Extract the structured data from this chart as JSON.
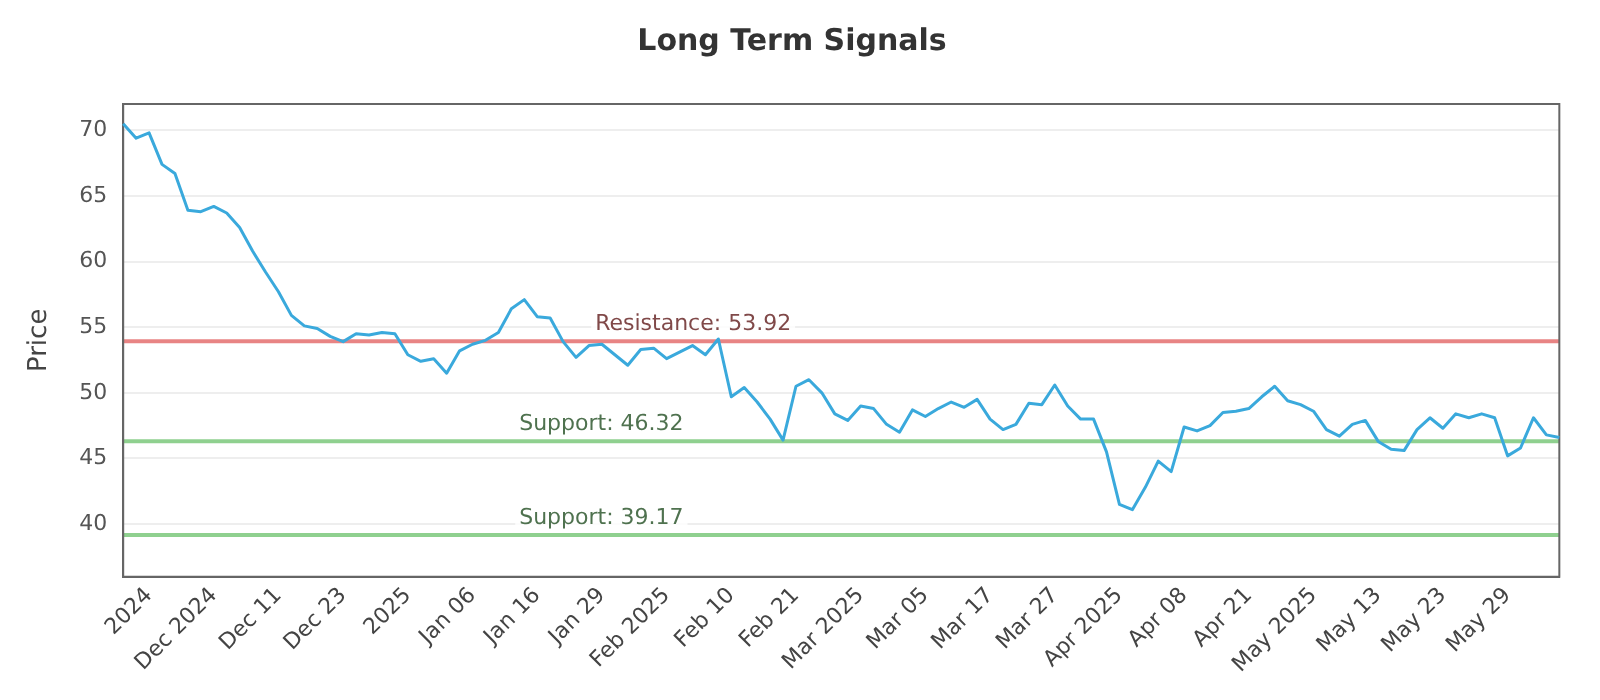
{
  "chart_data": {
    "type": "line",
    "title": "Long Term Signals",
    "ylabel": "Price",
    "categories": [
      null,
      null,
      "2024",
      null,
      null,
      null,
      null,
      "Dec 2024",
      null,
      null,
      null,
      null,
      "Dec 11",
      null,
      null,
      null,
      null,
      "Dec 23",
      null,
      null,
      null,
      null,
      "2025",
      null,
      null,
      null,
      null,
      "Jan 06",
      null,
      null,
      null,
      null,
      "Jan 16",
      null,
      null,
      null,
      null,
      "Jan 29",
      null,
      null,
      null,
      null,
      "Feb 2025",
      null,
      null,
      null,
      null,
      "Feb 10",
      null,
      null,
      null,
      null,
      "Feb 21",
      null,
      null,
      null,
      null,
      "Mar 2025",
      null,
      null,
      null,
      null,
      "Mar 05",
      null,
      null,
      null,
      null,
      "Mar 17",
      null,
      null,
      null,
      null,
      "Mar 27",
      null,
      null,
      null,
      null,
      "Apr 2025",
      null,
      null,
      null,
      null,
      "Apr 08",
      null,
      null,
      null,
      null,
      "Apr 21",
      null,
      null,
      null,
      null,
      "May 2025",
      null,
      null,
      null,
      null,
      "May 13",
      null,
      null,
      null,
      null,
      "May 23",
      null,
      null,
      null,
      null,
      "May 29",
      null,
      null,
      null,
      null
    ],
    "series": [
      {
        "color": "#3aa9dc",
        "values": [
          70.5,
          69.4,
          69.8,
          67.4,
          66.7,
          63.9,
          63.8,
          64.2,
          63.7,
          62.6,
          60.8,
          59.2,
          57.7,
          55.9,
          55.1,
          54.9,
          54.3,
          53.9,
          54.5,
          54.4,
          54.6,
          54.5,
          52.9,
          52.4,
          52.6,
          51.5,
          53.2,
          53.7,
          54.0,
          54.6,
          56.4,
          57.1,
          55.8,
          55.7,
          53.9,
          52.7,
          53.6,
          53.7,
          52.9,
          52.1,
          53.3,
          53.4,
          52.6,
          53.1,
          53.6,
          52.9,
          54.1,
          49.7,
          50.4,
          49.3,
          48.0,
          46.4,
          50.5,
          51.0,
          50.0,
          48.4,
          47.9,
          49.0,
          48.8,
          47.6,
          47.0,
          48.7,
          48.2,
          48.8,
          49.3,
          48.9,
          49.5,
          48.0,
          47.2,
          47.6,
          49.2,
          49.1,
          50.6,
          49.0,
          48.0,
          48.0,
          45.5,
          41.5,
          41.1,
          42.8,
          44.8,
          44.0,
          47.4,
          47.1,
          47.5,
          48.5,
          48.6,
          48.8,
          49.7,
          50.5,
          49.4,
          49.1,
          48.6,
          47.2,
          46.7,
          47.6,
          47.9,
          46.3,
          45.7,
          45.6,
          47.2,
          48.1,
          47.3,
          48.4,
          48.1,
          48.4,
          48.1,
          45.2,
          45.8,
          48.1,
          46.8,
          46.6
        ]
      }
    ],
    "ylim": [
      36,
      72
    ],
    "yticks": [
      40,
      45,
      50,
      55,
      60,
      65,
      70
    ],
    "grid": "y",
    "legend": false,
    "marker": "none",
    "line_style": "solid",
    "ref_lines": [
      {
        "axis": "y",
        "value": 53.92,
        "label": "Resistance: 53.92",
        "color": "#e88484"
      },
      {
        "axis": "y",
        "value": 46.32,
        "label": "Support: 46.32",
        "color": "#8fd08f"
      },
      {
        "axis": "y",
        "value": 39.17,
        "label": "Support: 39.17",
        "color": "#8fd08f"
      }
    ]
  }
}
